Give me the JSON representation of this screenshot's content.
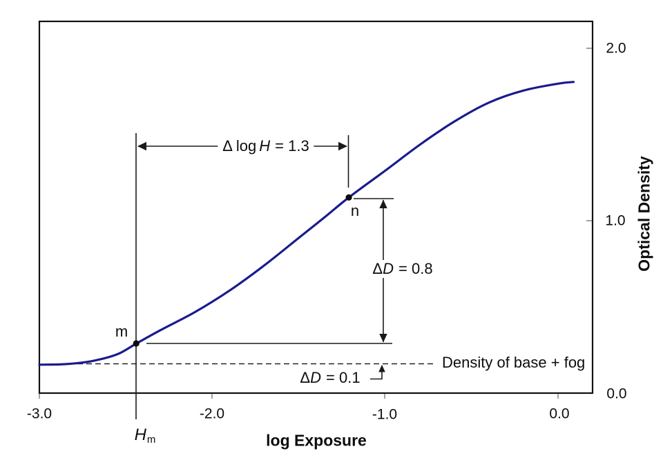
{
  "chart_data": {
    "type": "line",
    "description_visible_text_only": true,
    "x_axis": {
      "label": "log Exposure",
      "ticks": [
        "-3.0",
        "-2.0",
        "-1.0",
        "0.0"
      ],
      "range": [
        -3.0,
        0.2
      ]
    },
    "y_axis": {
      "label": "Optical Density",
      "ticks": [
        "0.0",
        "1.0",
        "2.0"
      ],
      "range": [
        0.0,
        2.15
      ],
      "side": "right"
    },
    "series": [
      {
        "name": "characteristic curve",
        "color": "#1a1a8e",
        "x": [
          -3.0,
          -2.85,
          -2.7,
          -2.55,
          -2.44,
          -2.3,
          -2.1,
          -1.9,
          -1.7,
          -1.5,
          -1.35,
          -1.21,
          -1.0,
          -0.8,
          -0.6,
          -0.4,
          -0.2,
          0.0,
          0.09
        ],
        "y": [
          0.165,
          0.168,
          0.185,
          0.225,
          0.287,
          0.365,
          0.47,
          0.595,
          0.74,
          0.9,
          1.02,
          1.135,
          1.29,
          1.44,
          1.575,
          1.685,
          1.755,
          1.795,
          1.805
        ]
      }
    ],
    "points": [
      {
        "label": "m",
        "log_exposure": -2.44,
        "density": 0.288
      },
      {
        "label": "n",
        "log_exposure": -1.21,
        "density": 1.135
      }
    ],
    "baseline": {
      "label": "Density of base + fog",
      "density": 0.17
    },
    "annotations": {
      "delta_log_H": {
        "prefix": "Δ log",
        "variable": "H",
        "suffix": "= 1.3",
        "value": 1.3
      },
      "delta_D_mid": {
        "prefix": "Δ",
        "variable": "D",
        "suffix": "= 0.8",
        "value": 0.8
      },
      "delta_D_toe": {
        "prefix": "Δ",
        "variable": "D",
        "suffix": "= 0.1",
        "value": 0.1
      },
      "H_m": {
        "variable": "H",
        "subscript": "m"
      }
    },
    "grid": "off",
    "legend": "none"
  }
}
